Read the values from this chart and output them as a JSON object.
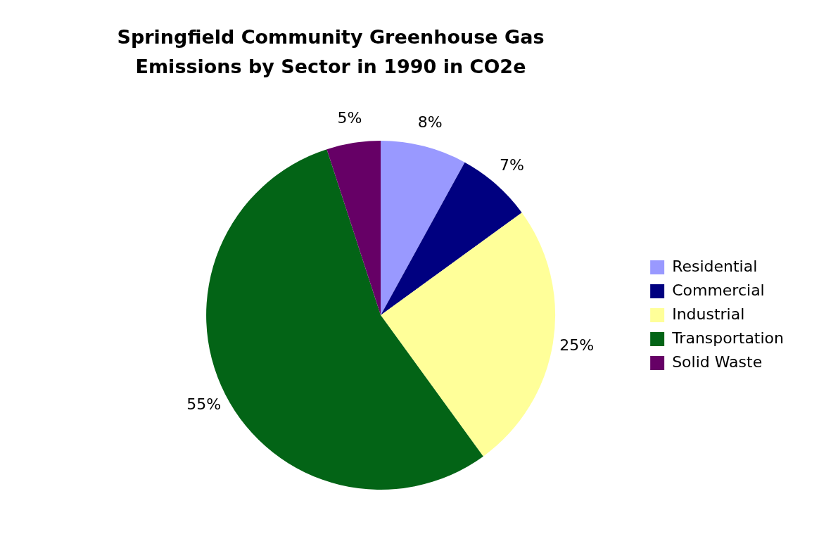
{
  "chart_data": {
    "type": "pie",
    "title": "Springfield Community Greenhouse Gas Emissions by Sector in 1990 in CO2e",
    "categories": [
      "Residential",
      "Commercial",
      "Industrial",
      "Transportation",
      "Solid Waste"
    ],
    "values": [
      8,
      7,
      25,
      55,
      5
    ],
    "colors": [
      "#9999ff",
      "#000080",
      "#ffff99",
      "#036416",
      "#660066"
    ],
    "value_labels": [
      "8%",
      "7%",
      "25%",
      "55%",
      "5%"
    ],
    "legend": "right"
  }
}
